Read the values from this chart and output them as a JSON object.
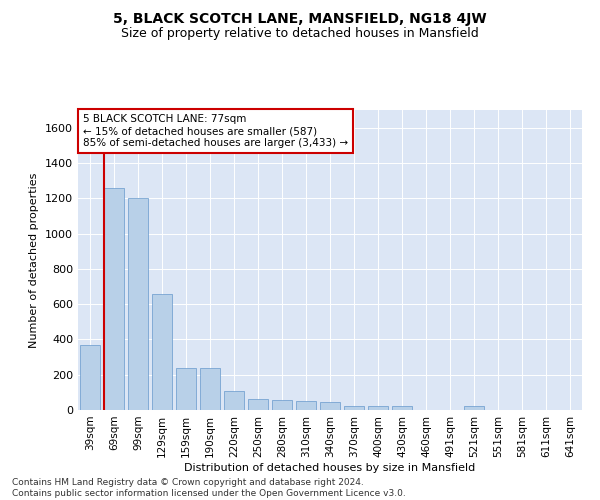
{
  "title": "5, BLACK SCOTCH LANE, MANSFIELD, NG18 4JW",
  "subtitle": "Size of property relative to detached houses in Mansfield",
  "xlabel": "Distribution of detached houses by size in Mansfield",
  "ylabel": "Number of detached properties",
  "categories": [
    "39sqm",
    "69sqm",
    "99sqm",
    "129sqm",
    "159sqm",
    "190sqm",
    "220sqm",
    "250sqm",
    "280sqm",
    "310sqm",
    "340sqm",
    "370sqm",
    "400sqm",
    "430sqm",
    "460sqm",
    "491sqm",
    "521sqm",
    "551sqm",
    "581sqm",
    "611sqm",
    "641sqm"
  ],
  "values": [
    370,
    1260,
    1200,
    660,
    240,
    240,
    110,
    65,
    55,
    50,
    45,
    20,
    20,
    20,
    0,
    0,
    20,
    0,
    0,
    0,
    0
  ],
  "bar_color": "#b8d0e8",
  "bar_edge_color": "#6699cc",
  "vline_color": "#cc0000",
  "ylim": [
    0,
    1700
  ],
  "yticks": [
    0,
    200,
    400,
    600,
    800,
    1000,
    1200,
    1400,
    1600
  ],
  "plot_bg_color": "#dce6f5",
  "annotation_label": "5 BLACK SCOTCH LANE: 77sqm",
  "annotation_line1": "← 15% of detached houses are smaller (587)",
  "annotation_line2": "85% of semi-detached houses are larger (3,433) →",
  "footer": "Contains HM Land Registry data © Crown copyright and database right 2024.\nContains public sector information licensed under the Open Government Licence v3.0."
}
